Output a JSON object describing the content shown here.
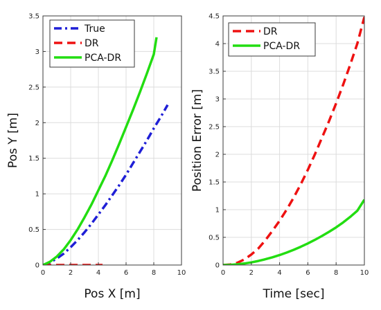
{
  "chart_data": [
    {
      "type": "line",
      "xlabel": "Pos X [m]",
      "ylabel": "Pos Y [m]",
      "xlim": [
        0,
        10
      ],
      "ylim": [
        0,
        3.5
      ],
      "xticks": [
        0,
        2,
        4,
        6,
        8,
        10
      ],
      "yticks": [
        0,
        0.5,
        1,
        1.5,
        2,
        2.5,
        3,
        3.5
      ],
      "grid": true,
      "legend": "top-left",
      "series": [
        {
          "name": "True",
          "color": "#1f1fd6",
          "style": "dashdot",
          "x": [
            0,
            0.5,
            1,
            1.5,
            2,
            2.5,
            3,
            3.5,
            4,
            4.5,
            5,
            5.5,
            6,
            6.5,
            7,
            7.5,
            8,
            8.5,
            9
          ],
          "y": [
            0,
            0.035,
            0.09,
            0.16,
            0.25,
            0.35,
            0.46,
            0.58,
            0.71,
            0.84,
            0.98,
            1.12,
            1.27,
            1.43,
            1.59,
            1.75,
            1.92,
            2.08,
            2.25
          ]
        },
        {
          "name": "DR",
          "color": "#ee1111",
          "style": "dash",
          "x": [
            0,
            1,
            2,
            3,
            4.3
          ],
          "y": [
            0,
            0,
            0,
            0,
            0
          ]
        },
        {
          "name": "PCA-DR",
          "color": "#22dd11",
          "style": "solid",
          "x": [
            0,
            0.5,
            1,
            1.5,
            2,
            2.5,
            3,
            3.5,
            4,
            4.5,
            5,
            5.5,
            6,
            6.5,
            7,
            7.5,
            8,
            8.2
          ],
          "y": [
            0,
            0.045,
            0.12,
            0.22,
            0.35,
            0.5,
            0.67,
            0.85,
            1.05,
            1.25,
            1.47,
            1.7,
            1.94,
            2.18,
            2.43,
            2.69,
            2.96,
            3.2
          ]
        }
      ]
    },
    {
      "type": "line",
      "xlabel": "Time [sec]",
      "ylabel": "Position Error [m]",
      "xlim": [
        0,
        10
      ],
      "ylim": [
        0,
        4.5
      ],
      "xticks": [
        0,
        2,
        4,
        6,
        8,
        10
      ],
      "yticks": [
        0,
        0.5,
        1,
        1.5,
        2,
        2.5,
        3,
        3.5,
        4,
        4.5
      ],
      "grid": true,
      "legend": "top-left",
      "series": [
        {
          "name": "DR",
          "color": "#ee1111",
          "style": "dash",
          "x": [
            0,
            0.5,
            1,
            1.5,
            2,
            2.5,
            3,
            3.5,
            4,
            4.5,
            5,
            5.5,
            6,
            6.5,
            7,
            7.5,
            8,
            8.5,
            9,
            9.5,
            10
          ],
          "y": [
            0,
            0.01,
            0.04,
            0.1,
            0.19,
            0.3,
            0.45,
            0.62,
            0.8,
            1.0,
            1.22,
            1.46,
            1.72,
            2.0,
            2.3,
            2.6,
            2.92,
            3.26,
            3.62,
            4.0,
            4.48
          ]
        },
        {
          "name": "PCA-DR",
          "color": "#22dd11",
          "style": "solid",
          "x": [
            0,
            0.5,
            1,
            1.5,
            2,
            2.5,
            3,
            3.5,
            4,
            4.5,
            5,
            5.5,
            6,
            6.5,
            7,
            7.5,
            8,
            8.5,
            9,
            9.5,
            10
          ],
          "y": [
            0,
            0.003,
            0.012,
            0.027,
            0.048,
            0.074,
            0.105,
            0.14,
            0.18,
            0.225,
            0.275,
            0.33,
            0.39,
            0.455,
            0.525,
            0.6,
            0.68,
            0.77,
            0.87,
            0.98,
            1.18
          ]
        }
      ]
    }
  ]
}
